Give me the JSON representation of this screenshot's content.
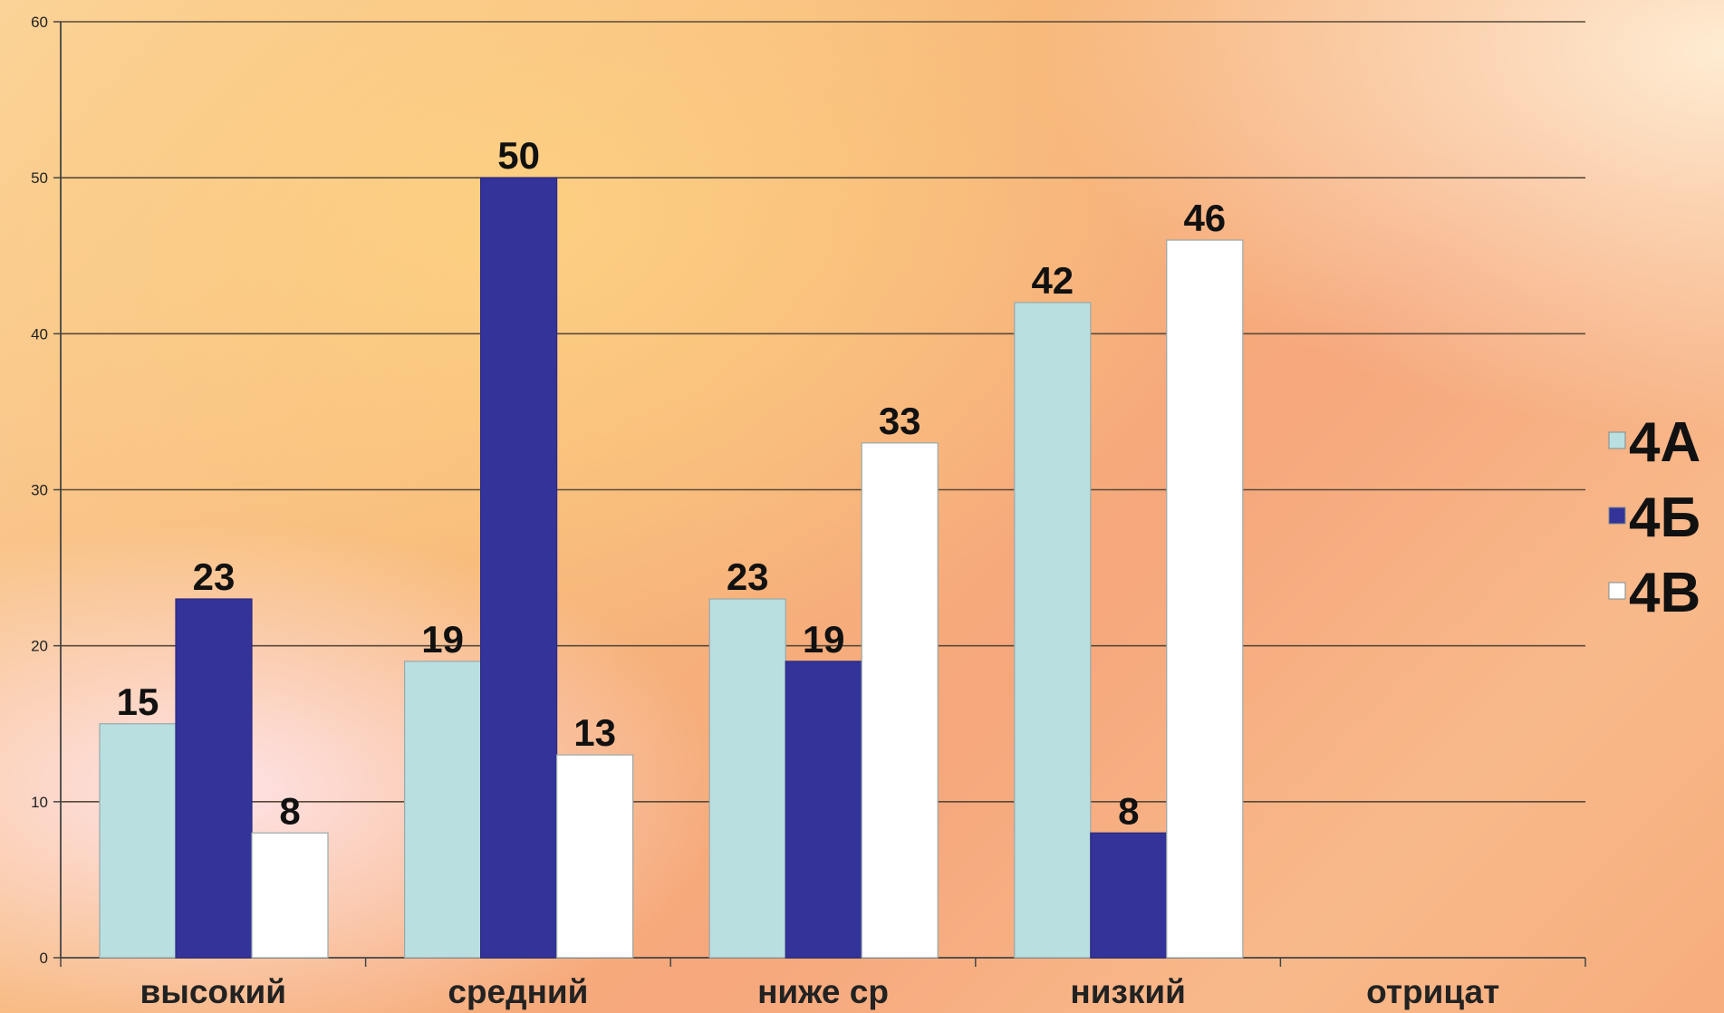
{
  "chart_data": {
    "type": "bar",
    "categories": [
      "высокий",
      "средний",
      "ниже ср",
      "низкий",
      "отрицат"
    ],
    "series": [
      {
        "name": "4А",
        "values": [
          15,
          19,
          23,
          42,
          null
        ],
        "color": "#b9dfe1"
      },
      {
        "name": "4Б",
        "values": [
          23,
          50,
          19,
          8,
          null
        ],
        "color": "#333399"
      },
      {
        "name": "4В",
        "values": [
          8,
          13,
          33,
          46,
          null
        ],
        "color": "#ffffff"
      }
    ],
    "ylim": [
      0,
      60
    ],
    "yticks": [
      0,
      10,
      20,
      30,
      40,
      50,
      60
    ],
    "grid": true,
    "legend_position": "right",
    "title": "",
    "xlabel": "",
    "ylabel": ""
  }
}
